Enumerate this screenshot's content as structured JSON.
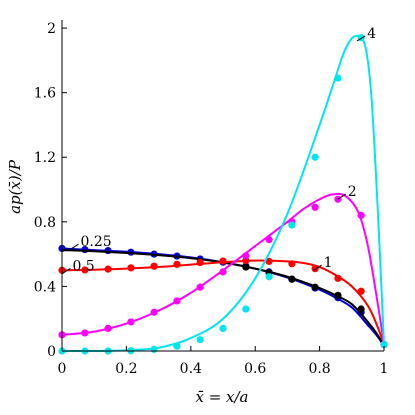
{
  "chart_data": {
    "type": "line",
    "xlabel": "x̄ = x/a",
    "ylabel": "ap(x̄)/P",
    "xlim": [
      0,
      1
    ],
    "ylim": [
      0,
      2.05
    ],
    "xticks": [
      0,
      0.2,
      0.4,
      0.6,
      0.8,
      1
    ],
    "yticks": [
      0,
      0.4,
      0.8,
      1.2,
      1.6,
      2
    ],
    "xtick_labels": [
      "0",
      "0.2",
      "0.4",
      "0.6",
      "0.8",
      "1"
    ],
    "ytick_labels": [
      "0",
      "0.4",
      "0.8",
      "1.2",
      "1.6",
      "2"
    ],
    "grid": false,
    "series": [
      {
        "name": "0.25",
        "color": "#0000cc",
        "curve_x": [
          0,
          0.1,
          0.2,
          0.3,
          0.4,
          0.5,
          0.6,
          0.7,
          0.8,
          0.85,
          0.9,
          0.95,
          0.98,
          1.0
        ],
        "curve_y": [
          0.635,
          0.625,
          0.615,
          0.6,
          0.58,
          0.55,
          0.51,
          0.455,
          0.38,
          0.33,
          0.27,
          0.16,
          0.09,
          0.03
        ],
        "points_x": [
          0,
          0.071,
          0.143,
          0.214,
          0.286,
          0.357,
          0.429,
          0.5,
          0.571,
          0.643,
          0.714,
          0.786,
          0.857,
          0.929,
          1.0
        ],
        "points_y": [
          0.635,
          0.628,
          0.622,
          0.612,
          0.6,
          0.588,
          0.57,
          0.55,
          0.525,
          0.49,
          0.445,
          0.39,
          0.33,
          0.24,
          0.04
        ]
      },
      {
        "name": "0.5",
        "color": "#000000",
        "curve_x": [
          0,
          0.1,
          0.2,
          0.3,
          0.4,
          0.5,
          0.6,
          0.7,
          0.8,
          0.85,
          0.9,
          0.95,
          0.98,
          1.0
        ],
        "curve_y": [
          0.625,
          0.618,
          0.607,
          0.594,
          0.575,
          0.548,
          0.51,
          0.46,
          0.39,
          0.345,
          0.29,
          0.18,
          0.1,
          0.03
        ],
        "points_x": [
          0.571,
          0.643,
          0.714,
          0.786,
          0.857,
          0.929
        ],
        "points_y": [
          0.52,
          0.485,
          0.445,
          0.395,
          0.345,
          0.26
        ]
      },
      {
        "name": "1",
        "color": "#ff0000",
        "curve_x": [
          0,
          0.1,
          0.2,
          0.3,
          0.4,
          0.5,
          0.6,
          0.7,
          0.75,
          0.8,
          0.85,
          0.9,
          0.95,
          0.98,
          1.0
        ],
        "curve_y": [
          0.5,
          0.503,
          0.51,
          0.52,
          0.535,
          0.55,
          0.56,
          0.555,
          0.545,
          0.52,
          0.47,
          0.4,
          0.28,
          0.15,
          0.04
        ],
        "points_x": [
          0,
          0.071,
          0.143,
          0.214,
          0.286,
          0.357,
          0.429,
          0.5,
          0.571,
          0.643,
          0.714,
          0.786,
          0.857,
          0.929,
          1.0
        ],
        "points_y": [
          0.5,
          0.502,
          0.507,
          0.515,
          0.525,
          0.537,
          0.548,
          0.557,
          0.56,
          0.555,
          0.54,
          0.51,
          0.45,
          0.37,
          0.04
        ]
      },
      {
        "name": "2",
        "color": "#ff00ff",
        "curve_x": [
          0,
          0.1,
          0.2,
          0.3,
          0.4,
          0.5,
          0.6,
          0.7,
          0.75,
          0.8,
          0.84,
          0.88,
          0.92,
          0.95,
          0.98,
          1.0
        ],
        "curve_y": [
          0.1,
          0.12,
          0.17,
          0.25,
          0.36,
          0.5,
          0.65,
          0.8,
          0.88,
          0.94,
          0.97,
          0.96,
          0.86,
          0.65,
          0.3,
          0.04
        ],
        "points_x": [
          0,
          0.071,
          0.143,
          0.214,
          0.286,
          0.357,
          0.429,
          0.5,
          0.571,
          0.643,
          0.714,
          0.786,
          0.857,
          0.929,
          1.0
        ],
        "points_y": [
          0.1,
          0.112,
          0.14,
          0.18,
          0.24,
          0.31,
          0.395,
          0.49,
          0.59,
          0.69,
          0.8,
          0.89,
          0.94,
          0.84,
          0.04
        ]
      },
      {
        "name": "4",
        "color": "#00e5ee",
        "curve_x": [
          0,
          0.1,
          0.2,
          0.3,
          0.4,
          0.5,
          0.6,
          0.7,
          0.8,
          0.85,
          0.88,
          0.91,
          0.94,
          0.96,
          0.98,
          1.0
        ],
        "curve_y": [
          0.0,
          0.0,
          0.005,
          0.02,
          0.08,
          0.2,
          0.45,
          0.85,
          1.4,
          1.7,
          1.87,
          1.95,
          1.9,
          1.6,
          0.9,
          0.04
        ],
        "points_x": [
          0,
          0.071,
          0.143,
          0.214,
          0.286,
          0.357,
          0.429,
          0.5,
          0.571,
          0.643,
          0.714,
          0.786,
          0.857,
          0.929,
          1.0
        ],
        "points_y": [
          0.0,
          0.0,
          0.0,
          0.002,
          0.01,
          0.03,
          0.07,
          0.14,
          0.26,
          0.46,
          0.78,
          1.2,
          1.69,
          1.94,
          0.04
        ]
      }
    ],
    "annotations": [
      {
        "text": "4",
        "x": 0.935,
        "y": 1.97
      },
      {
        "text": "2",
        "x": 0.875,
        "y": 0.99
      },
      {
        "text": "1",
        "x": 0.8,
        "y": 0.55
      },
      {
        "text": "0.25",
        "x": 0.045,
        "y": 0.68
      },
      {
        "text": "0.5",
        "x": 0.02,
        "y": 0.53
      }
    ]
  }
}
